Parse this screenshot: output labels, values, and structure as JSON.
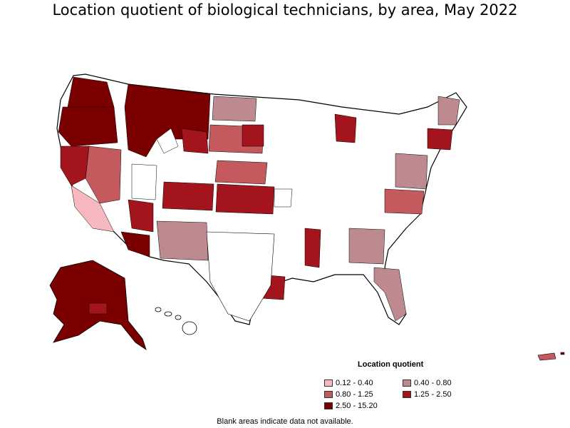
{
  "title": "Location quotient of biological technicians, by area, May 2022",
  "legend": {
    "title": "Location quotient",
    "items": [
      {
        "label": "0.12 - 0.40",
        "color": "#f7b8bf"
      },
      {
        "label": "0.40 - 0.80",
        "color": "#bd8b8f"
      },
      {
        "label": "0.80 - 1.25",
        "color": "#c45a5e"
      },
      {
        "label": "1.25 - 2.50",
        "color": "#a3141c"
      },
      {
        "label": "2.50 - 15.20",
        "color": "#7a0000"
      }
    ]
  },
  "note": "Blank areas indicate data not available.",
  "colors": {
    "border": "#000000",
    "blank": "#ffffff"
  }
}
